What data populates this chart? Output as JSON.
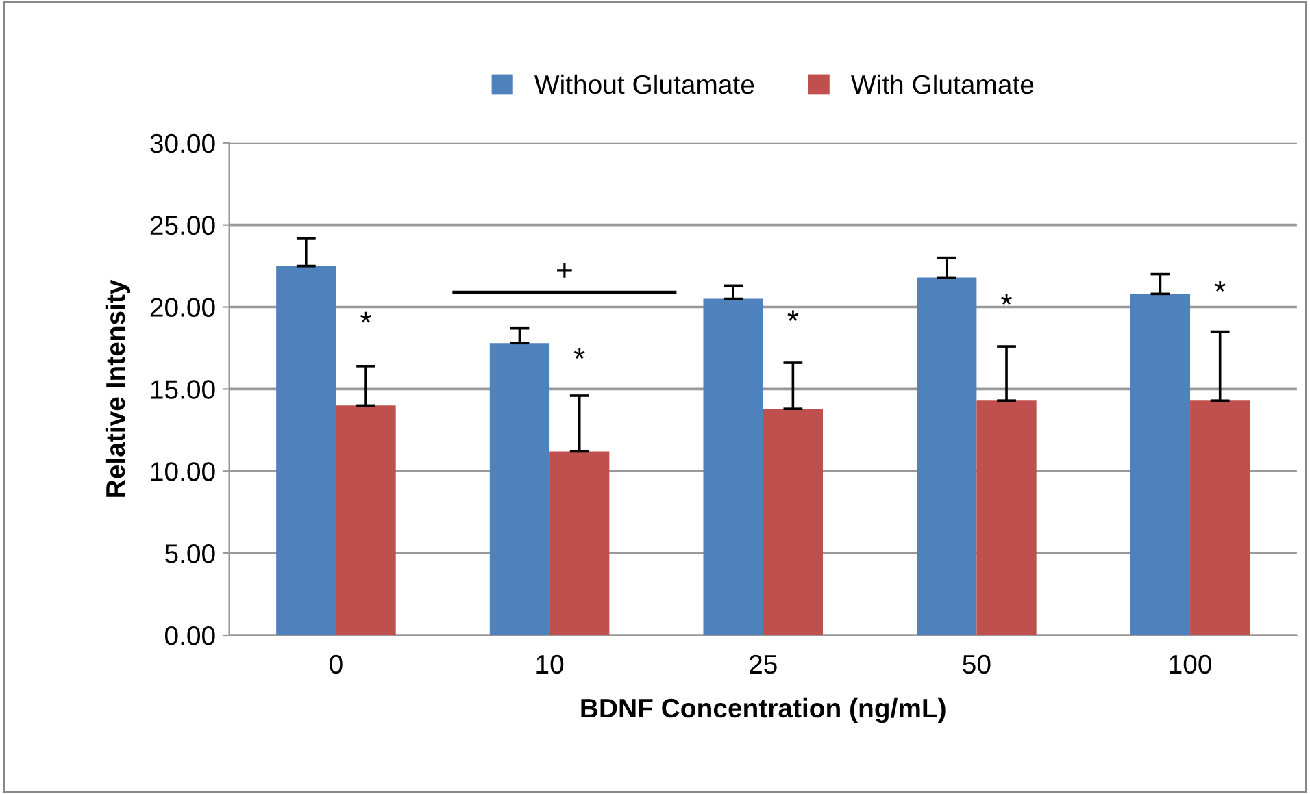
{
  "chart_data": {
    "type": "bar",
    "xlabel": "BDNF Concentration (ng/mL)",
    "ylabel": "Relative Intensity",
    "categories": [
      "0",
      "10",
      "25",
      "50",
      "100"
    ],
    "series": [
      {
        "name": "Without Glutamate",
        "color": "#4f81bd",
        "values": [
          22.5,
          17.8,
          20.5,
          21.8,
          20.8
        ],
        "errors": [
          [
            22.5,
            24.2
          ],
          [
            17.8,
            18.7
          ],
          [
            20.5,
            21.3
          ],
          [
            21.8,
            23.0
          ],
          [
            20.8,
            22.0
          ]
        ]
      },
      {
        "name": "With Glutamate",
        "color": "#c0504d",
        "values": [
          14.0,
          11.2,
          13.8,
          14.3,
          14.3
        ],
        "errors": [
          [
            14.0,
            16.4
          ],
          [
            11.2,
            14.6
          ],
          [
            13.8,
            16.6
          ],
          [
            14.3,
            17.6
          ],
          [
            14.3,
            18.5
          ]
        ]
      }
    ],
    "ylim": [
      0,
      30
    ],
    "yticks": [
      {
        "value": 0,
        "label": "0.00"
      },
      {
        "value": 5,
        "label": "5.00"
      },
      {
        "value": 10,
        "label": "10.00"
      },
      {
        "value": 15,
        "label": "15.00"
      },
      {
        "value": 20,
        "label": "20.00"
      },
      {
        "value": 25,
        "label": "25.00"
      },
      {
        "value": 30,
        "label": "30.00"
      }
    ],
    "grid": "y",
    "legend": "top",
    "annotations": [
      {
        "text": "*",
        "x": "0",
        "y": 18.9
      },
      {
        "text": "*",
        "x": "10",
        "y": 16.7
      },
      {
        "text": "*",
        "x": "25",
        "y": 19.0
      },
      {
        "text": "*",
        "x": "50",
        "y": 20.0
      },
      {
        "text": "*",
        "x": "100",
        "y": 20.8
      },
      "+"
    ]
  }
}
